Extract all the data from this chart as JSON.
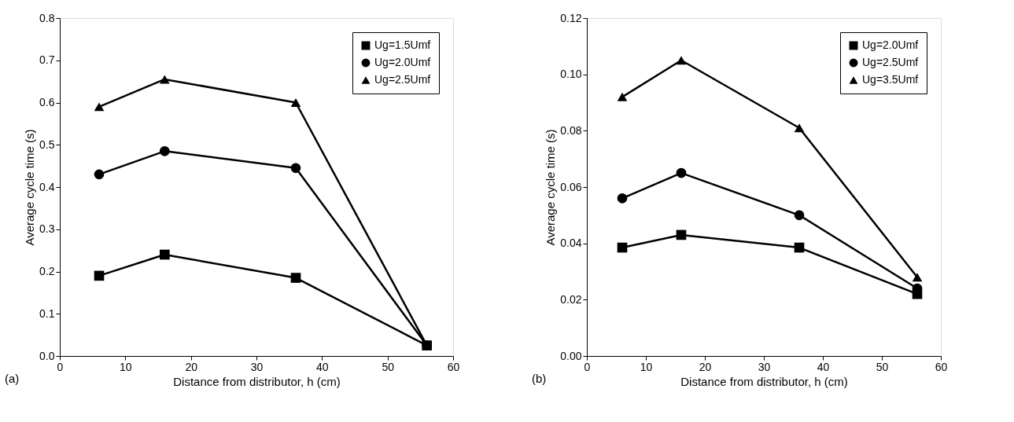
{
  "chart_data": [
    {
      "type": "line",
      "xlabel": "Distance from distributor, h (cm)",
      "ylabel": "Average cycle time (s)",
      "x": [
        6,
        16,
        36,
        56
      ],
      "series": [
        {
          "name": "Ug=1.5Umf",
          "color": "#000000",
          "marker": "square",
          "values": [
            0.19,
            0.24,
            0.185,
            0.025
          ]
        },
        {
          "name": "Ug=2.0Umf",
          "color": "#000000",
          "marker": "circle",
          "values": [
            0.43,
            0.485,
            0.445,
            0.025
          ]
        },
        {
          "name": "Ug=2.5Umf",
          "color": "#000000",
          "marker": "triangle",
          "values": [
            0.59,
            0.655,
            0.6,
            0.025
          ]
        }
      ],
      "xlim": [
        0,
        60
      ],
      "xticks": [
        0,
        10,
        20,
        30,
        40,
        50,
        60
      ],
      "ylim": [
        0,
        0.8
      ],
      "yticks": [
        {
          "value": 0,
          "label": "0.0"
        },
        0.1,
        0.2,
        0.3,
        0.4,
        0.5,
        0.6,
        0.7,
        0.8
      ],
      "grid": false,
      "legend": "top right",
      "line_style": "solid",
      "annotations": [
        "(a)"
      ]
    },
    {
      "type": "line",
      "xlabel": "Distance from distributor, h (cm)",
      "ylabel": "Average cycle time (s)",
      "x": [
        6,
        16,
        36,
        56
      ],
      "series": [
        {
          "name": "Ug=2.0Umf",
          "color": "#000000",
          "marker": "square",
          "values": [
            0.0385,
            0.043,
            0.0385,
            0.022
          ]
        },
        {
          "name": "Ug=2.5Umf",
          "color": "#000000",
          "marker": "circle",
          "values": [
            0.056,
            0.065,
            0.05,
            0.024
          ]
        },
        {
          "name": "Ug=3.5Umf",
          "color": "#000000",
          "marker": "triangle",
          "values": [
            0.092,
            0.105,
            0.081,
            0.028
          ]
        }
      ],
      "xlim": [
        0,
        60
      ],
      "xticks": [
        0,
        10,
        20,
        30,
        40,
        50,
        60
      ],
      "ylim": [
        0,
        0.12
      ],
      "yticks": [
        {
          "value": 0,
          "label": "0.00"
        },
        {
          "value": 0.02,
          "label": "0.02"
        },
        {
          "value": 0.04,
          "label": "0.04"
        },
        {
          "value": 0.06,
          "label": "0.06"
        },
        {
          "value": 0.08,
          "label": "0.08"
        },
        {
          "value": 0.1,
          "label": "0.10"
        },
        {
          "value": 0.12,
          "label": "0.12"
        }
      ],
      "grid": false,
      "legend": "top right",
      "line_style": "solid",
      "annotations": [
        "(b)"
      ]
    }
  ]
}
